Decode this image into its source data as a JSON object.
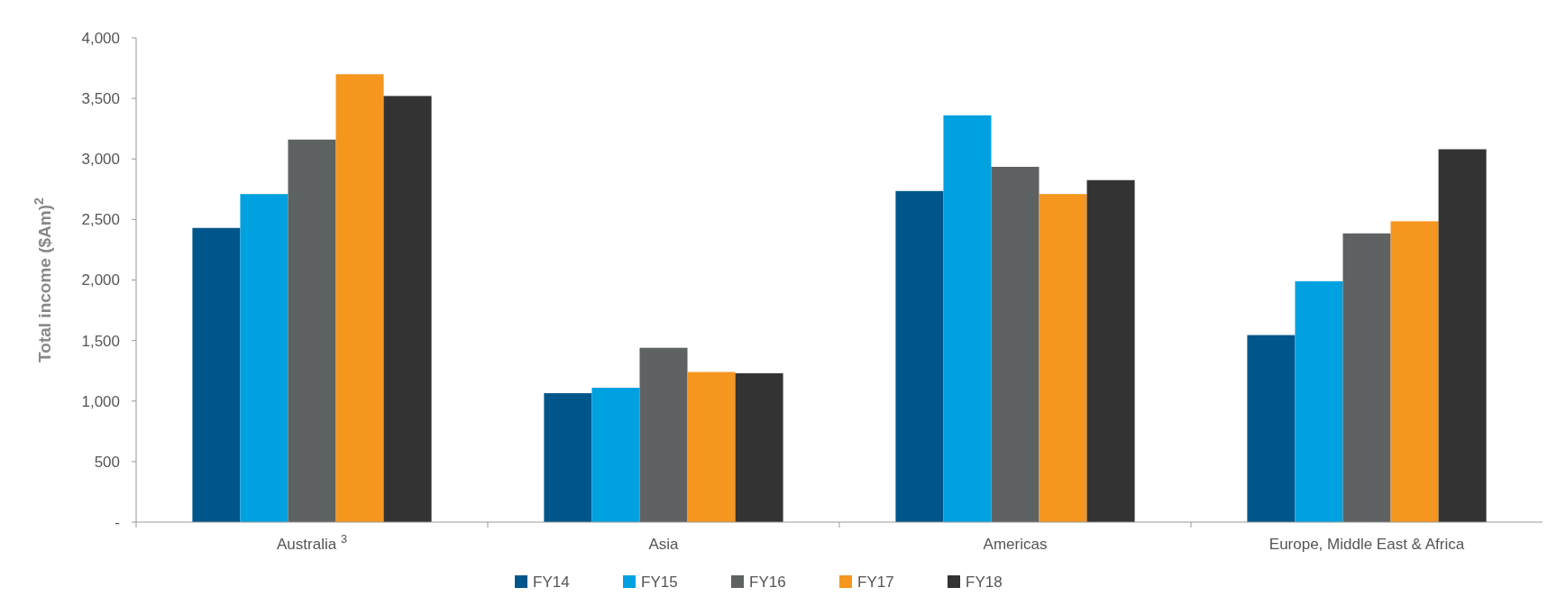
{
  "chart_data": {
    "type": "bar",
    "ylabel": "Total income ($Am)$^{2}$",
    "categories": [
      "Australia $^{3}$",
      "Asia",
      "Americas",
      "Europe, Middle East & Africa"
    ],
    "series": [
      {
        "name": "FY14",
        "color": "#00568a",
        "values": [
          2430,
          1065,
          2735,
          1545
        ]
      },
      {
        "name": "FY15",
        "color": "#00a1e0",
        "values": [
          2710,
          1110,
          3360,
          1990
        ]
      },
      {
        "name": "FY16",
        "color": "#5f6262",
        "values": [
          3160,
          1440,
          2935,
          2385
        ]
      },
      {
        "name": "FY17",
        "color": "#f5961e",
        "values": [
          3700,
          1240,
          2710,
          2485
        ]
      },
      {
        "name": "FY18",
        "color": "#333333",
        "values": [
          3520,
          1230,
          2825,
          3080
        ]
      }
    ],
    "ylim": [
      0,
      4000
    ],
    "yticks": [
      {
        "value": 0,
        "label": "-"
      },
      {
        "value": 500,
        "label": "500"
      },
      {
        "value": 1000,
        "label": "1,000"
      },
      {
        "value": 1500,
        "label": "1,500"
      },
      {
        "value": 2000,
        "label": "2,000"
      },
      {
        "value": 2500,
        "label": "2,500"
      },
      {
        "value": 3000,
        "label": "3,000"
      },
      {
        "value": 3500,
        "label": "3,500"
      },
      {
        "value": 4000,
        "label": "4,000"
      }
    ],
    "grid": false,
    "legend": "bottom"
  }
}
